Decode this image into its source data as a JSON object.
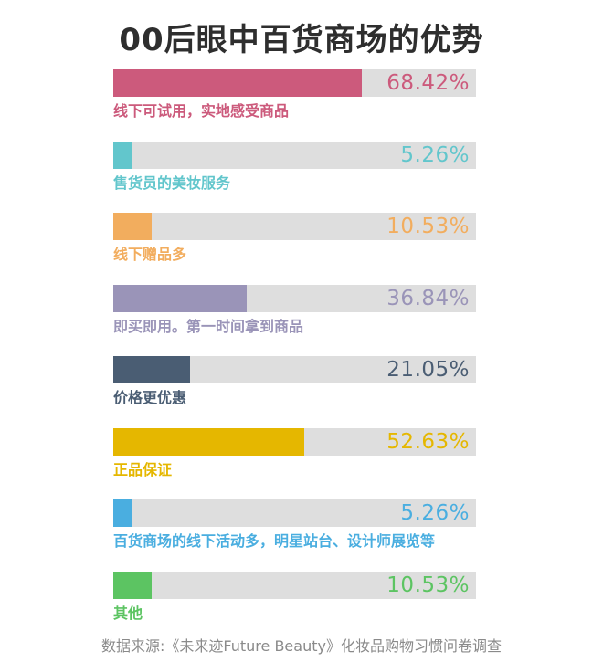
{
  "title": "00后眼中百货商场的优势",
  "source": "数据来源:《未来迹Future Beauty》化妆品购物习惯问卷调查",
  "chart_data": {
    "type": "bar",
    "orientation": "horizontal",
    "xlim": [
      0,
      100
    ],
    "unit": "%",
    "categories": [
      "线下可试用，实地感受商品",
      "售货员的美妆服务",
      "线下赠品多",
      "即买即用。第一时间拿到商品",
      "价格更优惠",
      "正品保证",
      "百货商场的线下活动多，明星站台、设计师展览等",
      "其他"
    ],
    "values": [
      68.42,
      5.26,
      10.53,
      36.84,
      21.05,
      52.63,
      5.26,
      10.53
    ],
    "value_labels": [
      "68.42%",
      "5.26%",
      "10.53%",
      "36.84%",
      "21.05%",
      "52.63%",
      "5.26%",
      "10.53%"
    ],
    "colors": [
      "#cc5a7c",
      "#62c6cc",
      "#f2ad5e",
      "#9a94b8",
      "#4a5d73",
      "#e5b700",
      "#4aaee0",
      "#5cc462"
    ],
    "track_color": "#dedede"
  }
}
